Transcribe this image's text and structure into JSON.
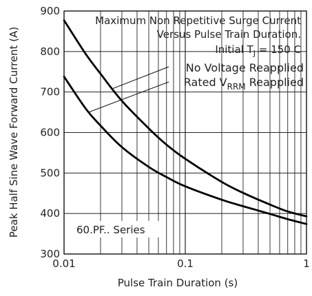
{
  "chart_data": {
    "type": "line",
    "x_scale": "log",
    "xlabel": "Pulse Train Duration (s)",
    "ylabel": "Peak Half Sine Wave Forward Current (A)",
    "xlim": [
      0.01,
      1
    ],
    "ylim": [
      300,
      900
    ],
    "x_ticks": [
      {
        "value": 0.01,
        "label": "0.01"
      },
      {
        "value": 0.1,
        "label": "0.1"
      },
      {
        "value": 1,
        "label": "1"
      }
    ],
    "y_ticks": [
      {
        "value": 300,
        "label": "300"
      },
      {
        "value": 400,
        "label": "400"
      },
      {
        "value": 500,
        "label": "500"
      },
      {
        "value": 600,
        "label": "600"
      },
      {
        "value": 700,
        "label": "700"
      },
      {
        "value": 800,
        "label": "800"
      },
      {
        "value": 900,
        "label": "900"
      }
    ],
    "grid": true,
    "annotation": {
      "line1": "Maximum Non Repetitive Surge Current",
      "line2": "Versus Pulse Train Duration.",
      "line3_prefix": "Initial T",
      "line3_sub": "J",
      "line3_suffix": " = 150 C"
    },
    "series_label": "60.PF.. Series",
    "series": [
      {
        "name": "No Voltage Reapplied",
        "x": [
          0.01,
          0.015,
          0.02,
          0.03,
          0.05,
          0.07,
          0.1,
          0.2,
          0.3,
          0.5,
          0.7,
          1.0
        ],
        "values": [
          877,
          795,
          745,
          678,
          610,
          570,
          535,
          478,
          451,
          422,
          405,
          393
        ]
      },
      {
        "name": "Rated V",
        "name_sub": "RRM",
        "name_suffix": " Reapplied",
        "x": [
          0.01,
          0.015,
          0.02,
          0.03,
          0.05,
          0.07,
          0.1,
          0.2,
          0.3,
          0.5,
          0.7,
          1.0
        ],
        "values": [
          738,
          660,
          617,
          564,
          515,
          490,
          467,
          434,
          418,
          399,
          386,
          374
        ]
      }
    ]
  }
}
